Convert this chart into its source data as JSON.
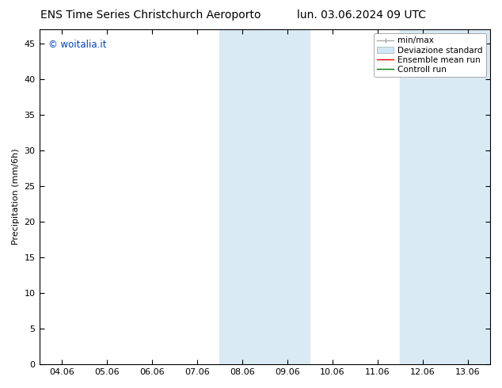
{
  "title_left": "ENS Time Series Christchurch Aeroporto",
  "title_right": "lun. 03.06.2024 09 UTC",
  "ylabel": "Precipitation (mm/6h)",
  "xlabel": "",
  "xtick_labels": [
    "04.06",
    "05.06",
    "06.06",
    "07.06",
    "08.06",
    "09.06",
    "10.06",
    "11.06",
    "12.06",
    "13.06"
  ],
  "xtick_positions": [
    0,
    1,
    2,
    3,
    4,
    5,
    6,
    7,
    8,
    9
  ],
  "xlim": [
    -0.5,
    9.5
  ],
  "ylim": [
    0,
    47
  ],
  "yticks": [
    0,
    5,
    10,
    15,
    20,
    25,
    30,
    35,
    40,
    45
  ],
  "shaded_regions": [
    {
      "x_start": 3.5,
      "x_end": 5.5,
      "color": "#daeaf5"
    },
    {
      "x_start": 7.5,
      "x_end": 9.5,
      "color": "#daeaf5"
    }
  ],
  "watermark": "© woitalia.it",
  "watermark_color": "#0044bb",
  "bg_color": "#ffffff",
  "plot_bg_color": "#ffffff",
  "border_color": "#000000",
  "tick_color": "#000000",
  "font_size": 8,
  "title_font_size": 10,
  "legend_font_size": 7.5
}
